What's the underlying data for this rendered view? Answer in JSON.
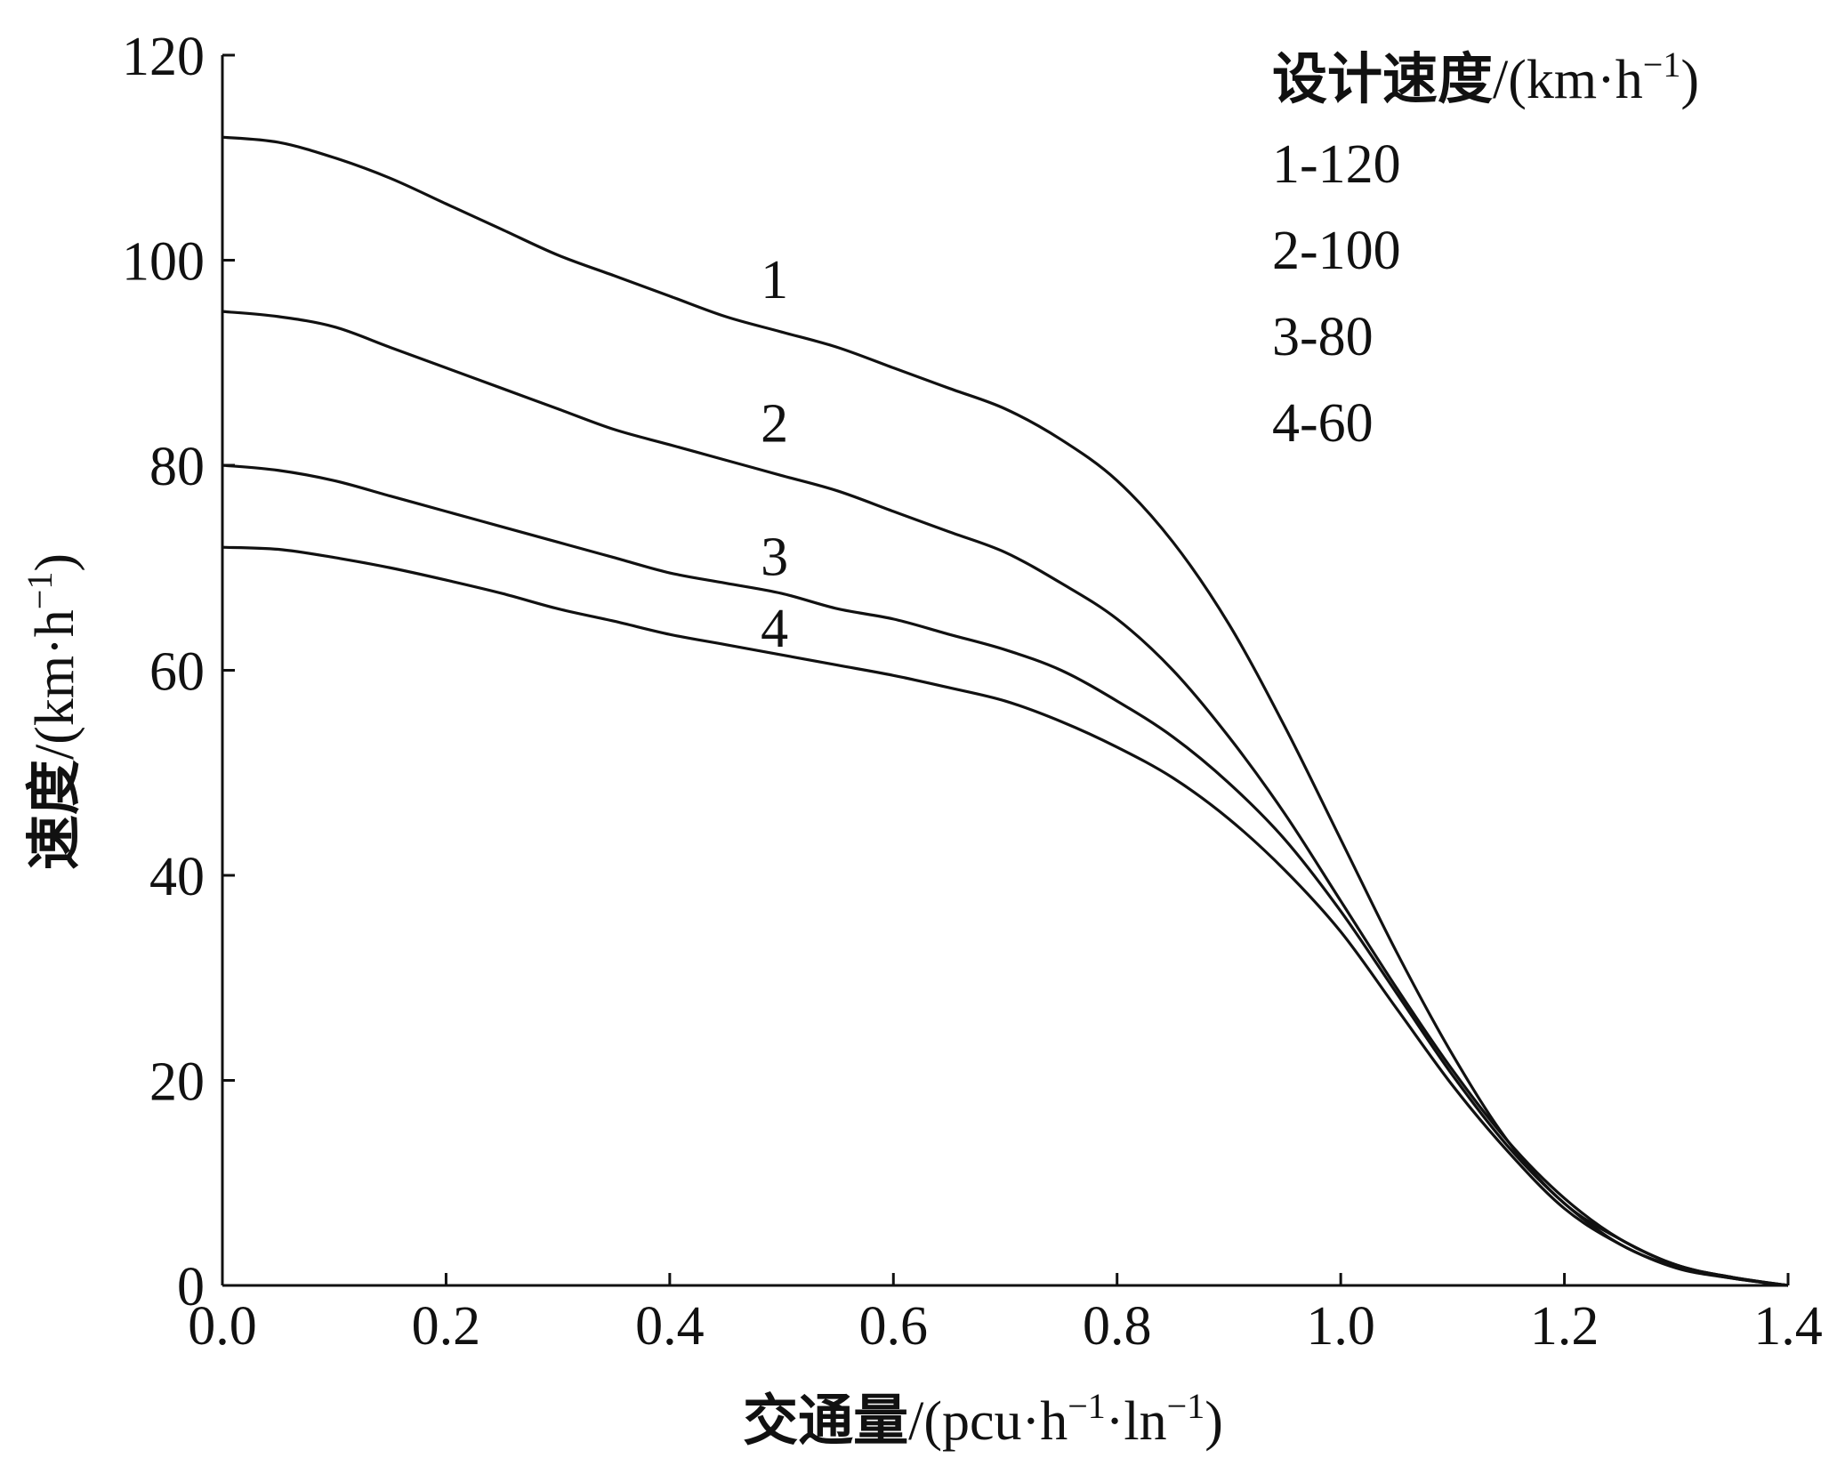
{
  "chart_data": {
    "type": "line",
    "title": "",
    "xlabel": {
      "cjk": "交通量",
      "unit_open": "/(pcu·h",
      "sup1": "−1",
      "mid": "·ln",
      "sup2": "−1",
      "close": ")"
    },
    "ylabel": {
      "cjk": "速度",
      "unit_open": "/(km·h",
      "sup": "−1",
      "close": ")"
    },
    "xlim": [
      0.0,
      1.4
    ],
    "ylim": [
      0,
      120
    ],
    "x_ticks": [
      "0.0",
      "0.2",
      "0.4",
      "0.6",
      "0.8",
      "1.0",
      "1.2",
      "1.4"
    ],
    "y_ticks": [
      "0",
      "20",
      "40",
      "60",
      "80",
      "100",
      "120"
    ],
    "grid": false,
    "legend": {
      "placement": "top-right",
      "title_cjk": "设计速度",
      "title_unit_open": "/(km·h",
      "title_sup": "−1",
      "title_close": ")",
      "entries": [
        "1-120",
        "2-100",
        "3-80",
        "4-60"
      ]
    },
    "x": [
      0.0,
      0.05,
      0.1,
      0.15,
      0.2,
      0.25,
      0.3,
      0.35,
      0.4,
      0.45,
      0.5,
      0.55,
      0.6,
      0.65,
      0.7,
      0.75,
      0.8,
      0.85,
      0.9,
      0.95,
      1.0,
      1.05,
      1.1,
      1.15,
      1.2,
      1.25,
      1.3,
      1.35,
      1.4
    ],
    "series": [
      {
        "name": "1",
        "values": [
          112,
          111.5,
          110,
          108,
          105.5,
          103,
          100.5,
          98.5,
          96.5,
          94.5,
          93,
          91.5,
          89.5,
          87.5,
          85.5,
          82.5,
          78.5,
          72.5,
          64.5,
          54.5,
          43.5,
          32.5,
          22.5,
          14,
          8,
          4.5,
          2,
          0.8,
          0
        ]
      },
      {
        "name": "2",
        "values": [
          95,
          94.5,
          93.5,
          91.5,
          89.5,
          87.5,
          85.5,
          83.5,
          82,
          80.5,
          79,
          77.5,
          75.5,
          73.5,
          71.5,
          68.5,
          65,
          60,
          53.5,
          46,
          37.5,
          29,
          21,
          14,
          8.5,
          4.5,
          2,
          0.8,
          0
        ]
      },
      {
        "name": "3",
        "values": [
          80,
          79.5,
          78.5,
          77,
          75.5,
          74,
          72.5,
          71,
          69.5,
          68.5,
          67.5,
          66,
          65,
          63.5,
          62,
          60,
          57,
          53.5,
          49,
          43.5,
          36.5,
          28.5,
          20.5,
          13.5,
          8,
          4,
          1.8,
          0.7,
          0
        ]
      },
      {
        "name": "4",
        "values": [
          72,
          71.8,
          71,
          70,
          68.8,
          67.5,
          66,
          64.8,
          63.5,
          62.5,
          61.5,
          60.5,
          59.5,
          58.3,
          57,
          55,
          52.5,
          49.5,
          45.5,
          40.5,
          34.5,
          27,
          19.5,
          13,
          7.5,
          4,
          1.7,
          0.7,
          0
        ]
      }
    ],
    "curve_labels": [
      {
        "text": "1",
        "x": 0.5,
        "y": 97
      },
      {
        "text": "2",
        "x": 0.5,
        "y": 83
      },
      {
        "text": "3",
        "x": 0.5,
        "y": 70
      },
      {
        "text": "4",
        "x": 0.5,
        "y": 63
      }
    ]
  }
}
